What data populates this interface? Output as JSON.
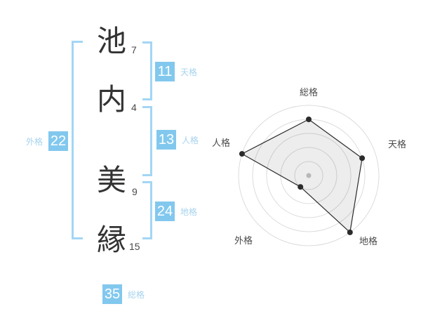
{
  "name_analysis": {
    "characters": [
      {
        "char": "池",
        "strokes": "7"
      },
      {
        "char": "内",
        "strokes": "4"
      },
      {
        "char": "美",
        "strokes": "9"
      },
      {
        "char": "縁",
        "strokes": "15"
      }
    ],
    "tenkaku": {
      "label": "天格",
      "value": "11"
    },
    "jinkaku": {
      "label": "人格",
      "value": "13"
    },
    "chikaku": {
      "label": "地格",
      "value": "24"
    },
    "gaikaku": {
      "label": "外格",
      "value": "22"
    },
    "soukaku": {
      "label": "総格",
      "value": "35"
    }
  },
  "chart_data": {
    "type": "radar",
    "axes": [
      "総格",
      "天格",
      "地格",
      "外格",
      "人格"
    ],
    "values": [
      4,
      4,
      5,
      1,
      5
    ],
    "max": 5,
    "rings": 5,
    "grid": "concentric-circles",
    "legend": "none",
    "title": ""
  },
  "colors": {
    "accent_blue": "#82C8EE",
    "bracket_blue": "#A3D6F4",
    "label_blue": "#A7D3EE",
    "text_dark": "#333333",
    "stroke_text": "#4A4A4A",
    "radar_label": "#4A4A4A",
    "grid_gray": "#DCDCDC",
    "radar_line": "#2B2B2B",
    "radar_fill": "rgba(0,0,0,0.07)",
    "center_dot": "#C6C6C6"
  }
}
